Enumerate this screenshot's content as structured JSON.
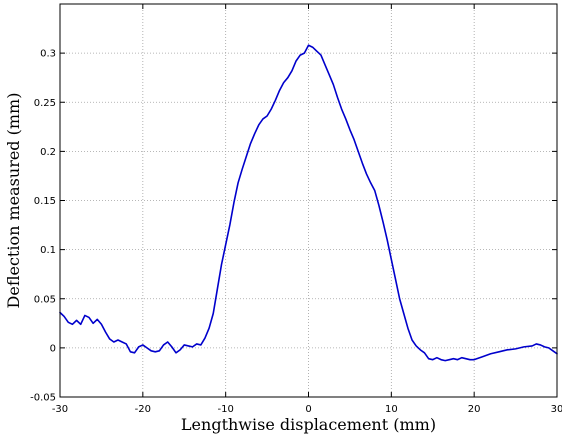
{
  "chart_data": {
    "type": "line",
    "xlabel": "Lengthwise displacement (mm)",
    "ylabel": "Deflection measured (mm)",
    "xlim": [
      -30,
      30
    ],
    "ylim": [
      -0.05,
      0.35
    ],
    "xticks": [
      -30,
      -20,
      -10,
      0,
      10,
      20,
      30
    ],
    "yticks": [
      -0.05,
      0,
      0.05,
      0.1,
      0.15,
      0.2,
      0.25,
      0.3
    ],
    "xtick_labels": [
      "-30",
      "-20",
      "-10",
      "0",
      "10",
      "20",
      "30"
    ],
    "ytick_labels": [
      "-0.05",
      "0",
      "0.05",
      "0.1",
      "0.15",
      "0.2",
      "0.25",
      "0.3"
    ],
    "grid": true,
    "grid_style": "dotted",
    "line_color": "#0000cc",
    "series": [
      {
        "x": [
          -30,
          -29.5,
          -29,
          -28.5,
          -28,
          -27.5,
          -27,
          -26.5,
          -26,
          -25.5,
          -25,
          -24.5,
          -24,
          -23.5,
          -23,
          -22.5,
          -22,
          -21.5,
          -21,
          -20.5,
          -20,
          -19.5,
          -19,
          -18.5,
          -18,
          -17.5,
          -17,
          -16.5,
          -16,
          -15.5,
          -15,
          -14.5,
          -14,
          -13.5,
          -13,
          -12.5,
          -12,
          -11.5,
          -11,
          -10.5,
          -10,
          -9.5,
          -9,
          -8.5,
          -8,
          -7.5,
          -7,
          -6.5,
          -6,
          -5.5,
          -5,
          -4.5,
          -4,
          -3.5,
          -3,
          -2.5,
          -2,
          -1.5,
          -1,
          -0.5,
          0,
          0.5,
          1,
          1.5,
          2,
          2.5,
          3,
          3.5,
          4,
          4.5,
          5,
          5.5,
          6,
          6.5,
          7,
          7.5,
          8,
          8.5,
          9,
          9.5,
          10,
          10.5,
          11,
          11.5,
          12,
          12.5,
          13,
          13.5,
          14,
          14.5,
          15,
          15.5,
          16,
          16.5,
          17,
          17.5,
          18,
          18.5,
          19,
          19.5,
          20,
          21,
          22,
          23,
          24,
          25,
          26,
          27,
          27.5,
          28,
          28.5,
          29,
          29.5,
          30
        ],
        "y": [
          0.036,
          0.032,
          0.026,
          0.024,
          0.028,
          0.024,
          0.033,
          0.031,
          0.025,
          0.029,
          0.024,
          0.016,
          0.009,
          0.006,
          0.008,
          0.006,
          0.004,
          -0.004,
          -0.005,
          0.001,
          0.003,
          0.0,
          -0.003,
          -0.004,
          -0.003,
          0.003,
          0.006,
          0.001,
          -0.005,
          -0.002,
          0.003,
          0.002,
          0.001,
          0.004,
          0.003,
          0.01,
          0.02,
          0.035,
          0.06,
          0.085,
          0.105,
          0.125,
          0.148,
          0.168,
          0.182,
          0.195,
          0.208,
          0.218,
          0.227,
          0.233,
          0.236,
          0.243,
          0.252,
          0.262,
          0.27,
          0.275,
          0.282,
          0.292,
          0.298,
          0.3,
          0.308,
          0.306,
          0.302,
          0.298,
          0.288,
          0.278,
          0.268,
          0.255,
          0.243,
          0.233,
          0.222,
          0.212,
          0.2,
          0.188,
          0.177,
          0.168,
          0.16,
          0.145,
          0.128,
          0.11,
          0.09,
          0.07,
          0.05,
          0.035,
          0.02,
          0.008,
          0.002,
          -0.002,
          -0.005,
          -0.011,
          -0.012,
          -0.01,
          -0.012,
          -0.013,
          -0.012,
          -0.011,
          -0.012,
          -0.01,
          -0.011,
          -0.012,
          -0.012,
          -0.009,
          -0.006,
          -0.004,
          -0.002,
          -0.001,
          0.001,
          0.002,
          0.004,
          0.003,
          0.001,
          0.0,
          -0.003,
          -0.006
        ]
      }
    ]
  }
}
